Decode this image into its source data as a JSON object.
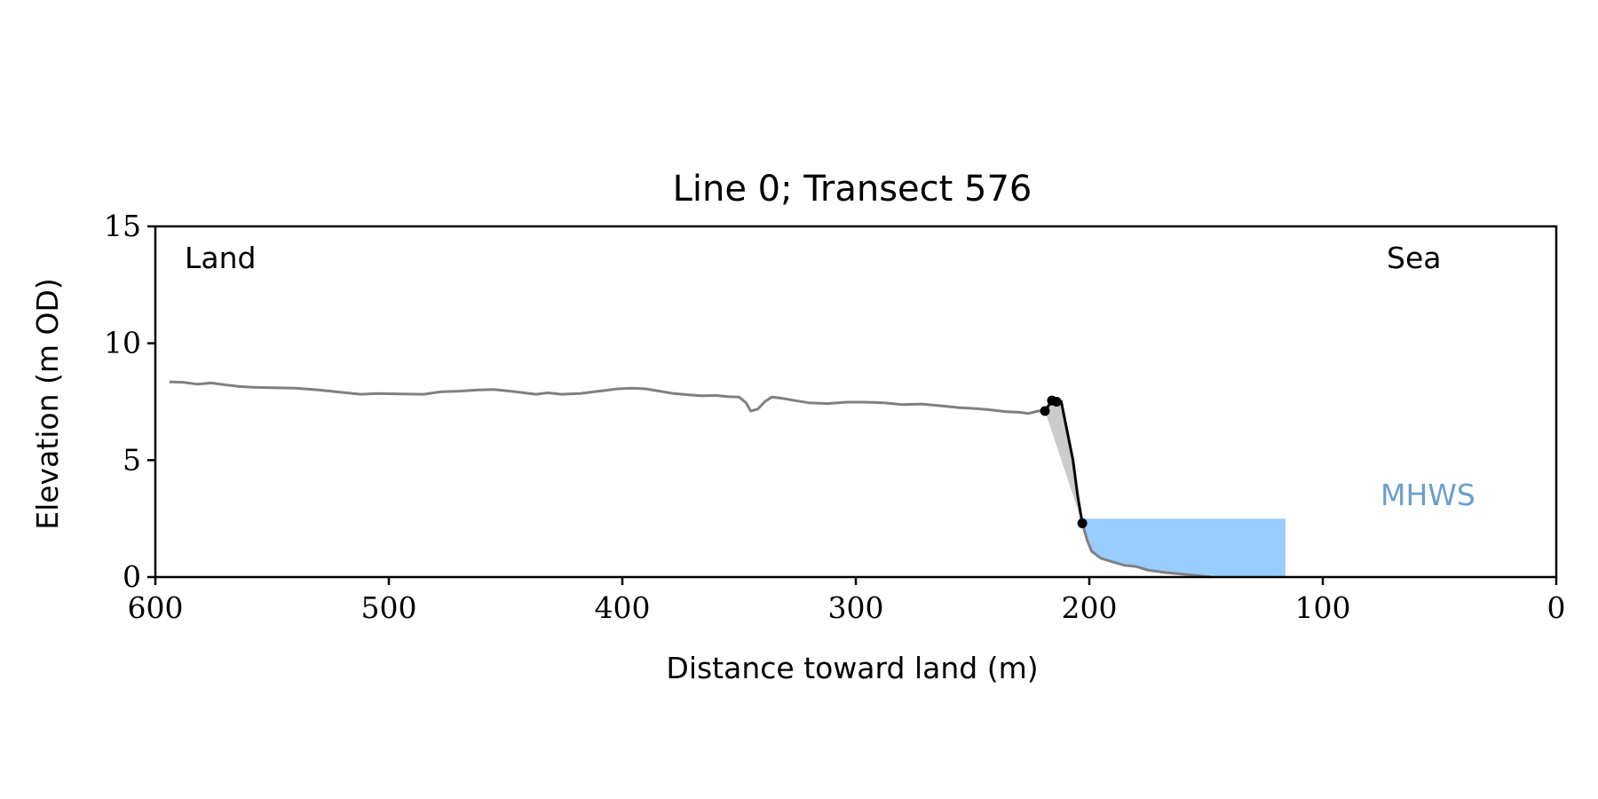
{
  "chart_data": {
    "type": "line",
    "title": "Line 0; Transect 576",
    "xlabel": "Distance toward land (m)",
    "ylabel": "Elevation (m OD)",
    "xlim": [
      600,
      0
    ],
    "ylim": [
      0,
      15
    ],
    "x_reversed": true,
    "x_ticks": [
      600,
      500,
      400,
      300,
      200,
      100,
      0
    ],
    "x_tick_labels": [
      "600",
      "500",
      "400",
      "300",
      "200",
      "100",
      "0"
    ],
    "y_ticks": [
      0,
      5,
      10,
      15
    ],
    "y_tick_labels": [
      "0",
      "5",
      "10",
      "15"
    ],
    "grid": false,
    "annotations": {
      "land": "Land",
      "sea": "Sea",
      "mhws": "MHWS"
    },
    "colors": {
      "profile": "#808080",
      "cliff": "#000000",
      "shade": "#cccccc",
      "mhws_fill": "#99ccff",
      "mhws_text": "#6a9fce"
    },
    "mhws": {
      "elevation": 2.5,
      "x_start": 204,
      "x_end": 116
    },
    "profile": [
      [
        594,
        8.35
      ],
      [
        588,
        8.33
      ],
      [
        582,
        8.25
      ],
      [
        576,
        8.3
      ],
      [
        570,
        8.22
      ],
      [
        564,
        8.15
      ],
      [
        558,
        8.12
      ],
      [
        550,
        8.1
      ],
      [
        540,
        8.08
      ],
      [
        530,
        8.0
      ],
      [
        520,
        7.9
      ],
      [
        512,
        7.82
      ],
      [
        505,
        7.85
      ],
      [
        495,
        7.83
      ],
      [
        485,
        7.82
      ],
      [
        478,
        7.92
      ],
      [
        470,
        7.95
      ],
      [
        462,
        8.0
      ],
      [
        455,
        8.02
      ],
      [
        448,
        7.95
      ],
      [
        442,
        7.88
      ],
      [
        437,
        7.82
      ],
      [
        432,
        7.88
      ],
      [
        426,
        7.82
      ],
      [
        418,
        7.85
      ],
      [
        410,
        7.95
      ],
      [
        402,
        8.05
      ],
      [
        396,
        8.08
      ],
      [
        390,
        8.05
      ],
      [
        384,
        7.95
      ],
      [
        378,
        7.85
      ],
      [
        372,
        7.8
      ],
      [
        366,
        7.75
      ],
      [
        360,
        7.77
      ],
      [
        355,
        7.72
      ],
      [
        350,
        7.7
      ],
      [
        347,
        7.45
      ],
      [
        345,
        7.1
      ],
      [
        342,
        7.18
      ],
      [
        339,
        7.5
      ],
      [
        336,
        7.7
      ],
      [
        332,
        7.65
      ],
      [
        326,
        7.55
      ],
      [
        320,
        7.45
      ],
      [
        312,
        7.42
      ],
      [
        304,
        7.48
      ],
      [
        296,
        7.48
      ],
      [
        288,
        7.45
      ],
      [
        280,
        7.38
      ],
      [
        272,
        7.4
      ],
      [
        264,
        7.33
      ],
      [
        256,
        7.25
      ],
      [
        248,
        7.2
      ],
      [
        242,
        7.15
      ],
      [
        236,
        7.08
      ],
      [
        230,
        7.05
      ],
      [
        226,
        7.0
      ],
      [
        222,
        7.1
      ],
      [
        219,
        7.1
      ]
    ],
    "cliff": [
      [
        219,
        7.1
      ],
      [
        216,
        7.55
      ],
      [
        214,
        7.5
      ],
      [
        212,
        7.5
      ],
      [
        207,
        5.0
      ],
      [
        205,
        3.5
      ],
      [
        203,
        2.3
      ]
    ],
    "cliff_points": [
      [
        219,
        7.1
      ],
      [
        216,
        7.55
      ],
      [
        214,
        7.5
      ],
      [
        203,
        2.3
      ]
    ],
    "toe": [
      [
        203,
        2.3
      ],
      [
        201,
        1.6
      ],
      [
        199,
        1.1
      ],
      [
        195,
        0.8
      ],
      [
        190,
        0.65
      ],
      [
        185,
        0.5
      ],
      [
        180,
        0.45
      ],
      [
        175,
        0.3
      ],
      [
        168,
        0.2
      ],
      [
        160,
        0.12
      ],
      [
        152,
        0.05
      ],
      [
        148,
        0.0
      ]
    ],
    "shade_polygon": [
      [
        219,
        7.1
      ],
      [
        216,
        7.55
      ],
      [
        214,
        7.5
      ],
      [
        212,
        7.5
      ],
      [
        207,
        5.0
      ],
      [
        205,
        3.5
      ],
      [
        203,
        2.3
      ]
    ]
  }
}
